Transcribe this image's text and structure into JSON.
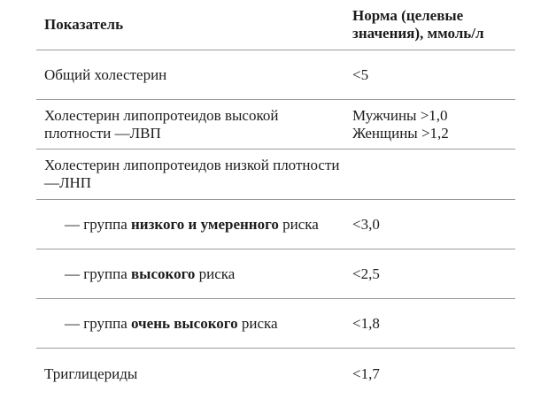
{
  "page": {
    "background_color": "#ffffff",
    "text_color": "#1c1c1c",
    "rule_color": "#9b9b9b"
  },
  "table": {
    "columns": [
      {
        "label": "Показатель"
      },
      {
        "label": "Норма (целевые значения), ммоль/л"
      }
    ],
    "rows": [
      {
        "indent": false,
        "indicator": [
          {
            "text": "Общий холестерин",
            "bold": false
          }
        ],
        "norm": [
          "<5"
        ]
      },
      {
        "indent": false,
        "indicator": [
          {
            "text": "Холестерин липопротеидов высокой плотности —ЛВП",
            "bold": false
          }
        ],
        "norm": [
          "Мужчины >1,0",
          "Женщины >1,2"
        ]
      },
      {
        "indent": false,
        "indicator": [
          {
            "text": "Холестерин липопротеидов низкой плотности —ЛНП",
            "bold": false
          }
        ],
        "norm": []
      },
      {
        "indent": true,
        "indicator": [
          {
            "text": "— группа ",
            "bold": false
          },
          {
            "text": "низкого и умеренного",
            "bold": true
          },
          {
            "text": " риска",
            "bold": false
          }
        ],
        "norm": [
          "<3,0"
        ]
      },
      {
        "indent": true,
        "indicator": [
          {
            "text": "— группа ",
            "bold": false
          },
          {
            "text": "высокого",
            "bold": true
          },
          {
            "text": " риска",
            "bold": false
          }
        ],
        "norm": [
          "<2,5"
        ]
      },
      {
        "indent": true,
        "indicator": [
          {
            "text": "— группа ",
            "bold": false
          },
          {
            "text": "очень высокого",
            "bold": true
          },
          {
            "text": " риска",
            "bold": false
          }
        ],
        "norm": [
          "<1,8"
        ]
      },
      {
        "indent": false,
        "indicator": [
          {
            "text": "Триглицериды",
            "bold": false
          }
        ],
        "norm": [
          "<1,7"
        ]
      }
    ]
  }
}
